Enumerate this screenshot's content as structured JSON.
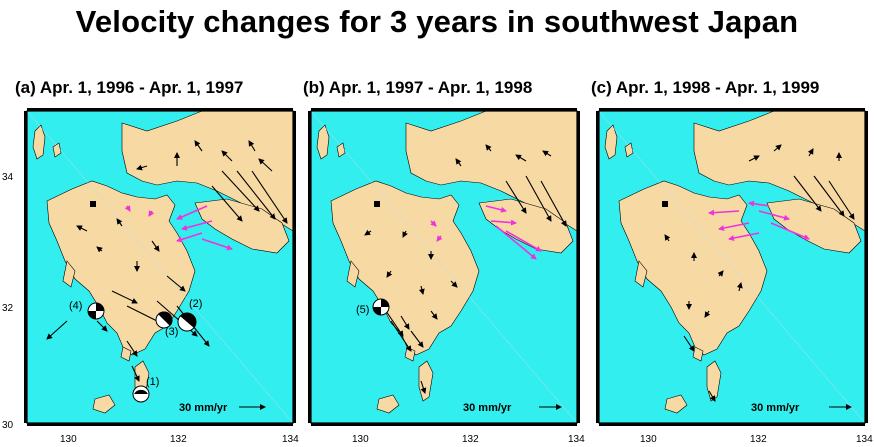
{
  "title": "Velocity changes for 3 years in southwest Japan",
  "panels": [
    {
      "label": "(a) Apr. 1, 1996 - Apr. 1, 1997",
      "scale_text": "30 mm/yr"
    },
    {
      "label": "(b) Apr. 1, 1997 - Apr. 1, 1998",
      "scale_text": "30 mm/yr"
    },
    {
      "label": "(c) Apr. 1, 1998 - Apr. 1, 1999",
      "scale_text": "30 mm/yr"
    }
  ],
  "axes": {
    "x_ticks": [
      "130",
      "132",
      "134"
    ],
    "y_ticks": [
      "34",
      "32",
      "30"
    ]
  },
  "events_panel_a": [
    "(1)",
    "(2)",
    "(3)",
    "(4)"
  ],
  "events_panel_b": [
    "(5)"
  ],
  "colors": {
    "sea": "#33eeee",
    "land": "#f7d9a3",
    "arrow": "#000000",
    "highlight_arrow": "#ee33dd",
    "frame": "#000000"
  }
}
